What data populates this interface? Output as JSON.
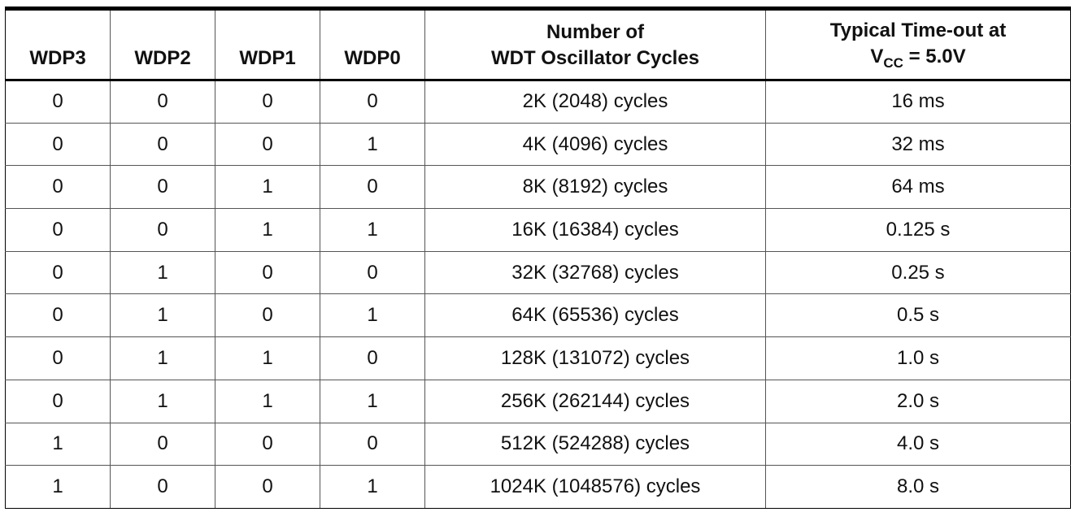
{
  "table": {
    "headers": {
      "wdp3": "WDP3",
      "wdp2": "WDP2",
      "wdp1": "WDP1",
      "wdp0": "WDP0",
      "cycles_line1": "Number of",
      "cycles_line2": "WDT Oscillator Cycles",
      "timeout_line1": "Typical Time-out at",
      "timeout_v": "V",
      "timeout_sub": "CC",
      "timeout_rest": " = 5.0V"
    },
    "rows": [
      [
        "0",
        "0",
        "0",
        "0",
        "2K (2048) cycles",
        "16 ms"
      ],
      [
        "0",
        "0",
        "0",
        "1",
        "4K (4096) cycles",
        "32 ms"
      ],
      [
        "0",
        "0",
        "1",
        "0",
        "8K (8192) cycles",
        "64 ms"
      ],
      [
        "0",
        "0",
        "1",
        "1",
        "16K (16384) cycles",
        "0.125 s"
      ],
      [
        "0",
        "1",
        "0",
        "0",
        "32K (32768) cycles",
        "0.25 s"
      ],
      [
        "0",
        "1",
        "0",
        "1",
        "64K (65536) cycles",
        "0.5 s"
      ],
      [
        "0",
        "1",
        "1",
        "0",
        "128K (131072) cycles",
        "1.0 s"
      ],
      [
        "0",
        "1",
        "1",
        "1",
        "256K (262144) cycles",
        "2.0 s"
      ],
      [
        "1",
        "0",
        "0",
        "0",
        "512K (524288) cycles",
        "4.0 s"
      ],
      [
        "1",
        "0",
        "0",
        "1",
        "1024K (1048576) cycles",
        "8.0 s"
      ]
    ]
  }
}
